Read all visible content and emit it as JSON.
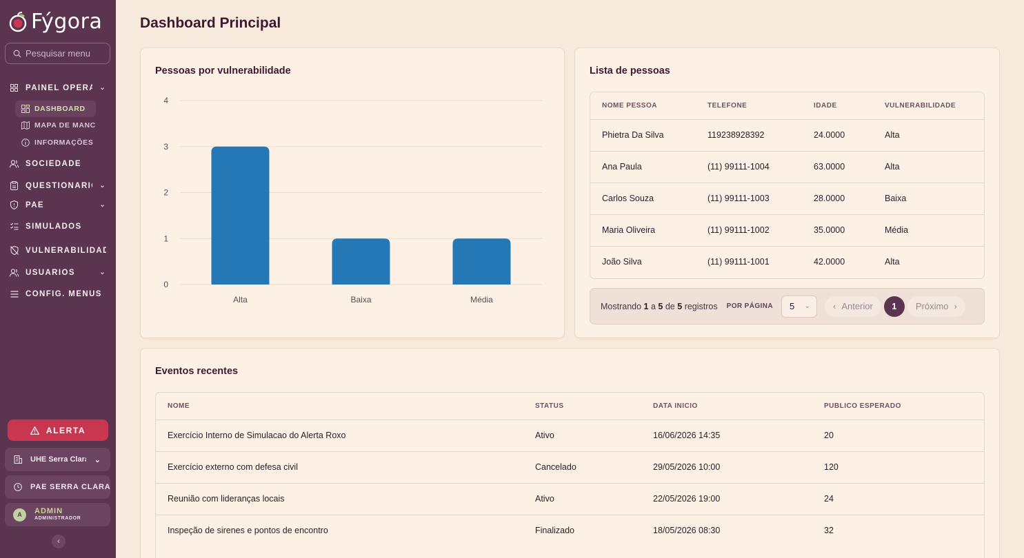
{
  "app": {
    "brand": "Fýgora",
    "search_placeholder": "Pesquisar menu"
  },
  "sidebar": {
    "sections": [
      {
        "label": "PAINEL OPERACIONAL",
        "icon": "grid-icon",
        "expandable": true
      },
      {
        "label": "SOCIEDADE",
        "icon": "users-icon",
        "expandable": false
      },
      {
        "label": "QUESTIONÁRIOS",
        "icon": "clipboard-icon",
        "expandable": true
      },
      {
        "label": "PAE",
        "icon": "shield-icon",
        "expandable": true
      },
      {
        "label": "SIMULADOS",
        "icon": "checklist-icon",
        "expandable": false
      },
      {
        "label": "VULNERABILIDADES",
        "icon": "shield-off-icon",
        "expandable": false
      },
      {
        "label": "USUÁRIOS",
        "icon": "users-icon",
        "expandable": true
      },
      {
        "label": "CONFIG. MENUS",
        "icon": "menu-icon",
        "expandable": false
      }
    ],
    "sub_items": [
      {
        "label": "DASHBOARD",
        "icon": "dashboard-icon",
        "active": true
      },
      {
        "label": "MAPA DE MANCHAS",
        "icon": "map-icon",
        "active": false
      },
      {
        "label": "INFORMAÇÕES",
        "icon": "info-icon",
        "active": false
      }
    ],
    "alert_label": "ALERTA",
    "plant_label": "UHE Serra Clara",
    "pae_label": "PAE SERRA CLARA",
    "user": {
      "initial": "A",
      "name": "ADMIN",
      "role": "ADMINISTRADOR"
    }
  },
  "page": {
    "title": "Dashboard Principal"
  },
  "chart_card": {
    "title": "Pessoas por vulnerabilidade"
  },
  "chart_data": {
    "type": "bar",
    "categories": [
      "Alta",
      "Baixa",
      "Média"
    ],
    "values": [
      3,
      1,
      1
    ],
    "ylim": [
      0,
      4
    ],
    "yticks": [
      0,
      1,
      2,
      3,
      4
    ],
    "grid": true,
    "color": "#2378b5"
  },
  "people": {
    "title": "Lista de pessoas",
    "columns": [
      "NOME PESSOA",
      "TELEFONE",
      "IDADE",
      "VULNERABILIDADE"
    ],
    "rows": [
      [
        "Phietra Da Silva",
        "119238928392",
        "24.0000",
        "Alta"
      ],
      [
        "Ana Paula",
        "(11) 99111-1004",
        "63.0000",
        "Alta"
      ],
      [
        "Carlos Souza",
        "(11) 99111-1003",
        "28.0000",
        "Baixa"
      ],
      [
        "Maria Oliveira",
        "(11) 99111-1002",
        "35.0000",
        "Média"
      ],
      [
        "João Silva",
        "(11) 99111-1001",
        "42.0000",
        "Alta"
      ]
    ],
    "pager": {
      "showing": "Mostrando",
      "from": "1",
      "a": "a",
      "to": "5",
      "de": "de",
      "total": "5",
      "registros": "registros",
      "per_page_label": "POR PÁGINA",
      "per_page_value": "5",
      "prev": "Anterior",
      "page": "1",
      "next": "Próximo"
    }
  },
  "events": {
    "title": "Eventos recentes",
    "columns": [
      "NOME",
      "STATUS",
      "DATA INICIO",
      "PUBLICO ESPERADO"
    ],
    "rows": [
      [
        "Exercício Interno de Simulacao do Alerta Roxo",
        "Ativo",
        "16/06/2026 14:35",
        "20"
      ],
      [
        "Exercício externo com defesa civil",
        "Cancelado",
        "29/05/2026 10:00",
        "120"
      ],
      [
        "Reunião com lideranças locais",
        "Ativo",
        "22/05/2026 19:00",
        "24"
      ],
      [
        "Inspeção de sirenes e pontos de encontro",
        "Finalizado",
        "18/05/2026 08:30",
        "32"
      ]
    ]
  }
}
